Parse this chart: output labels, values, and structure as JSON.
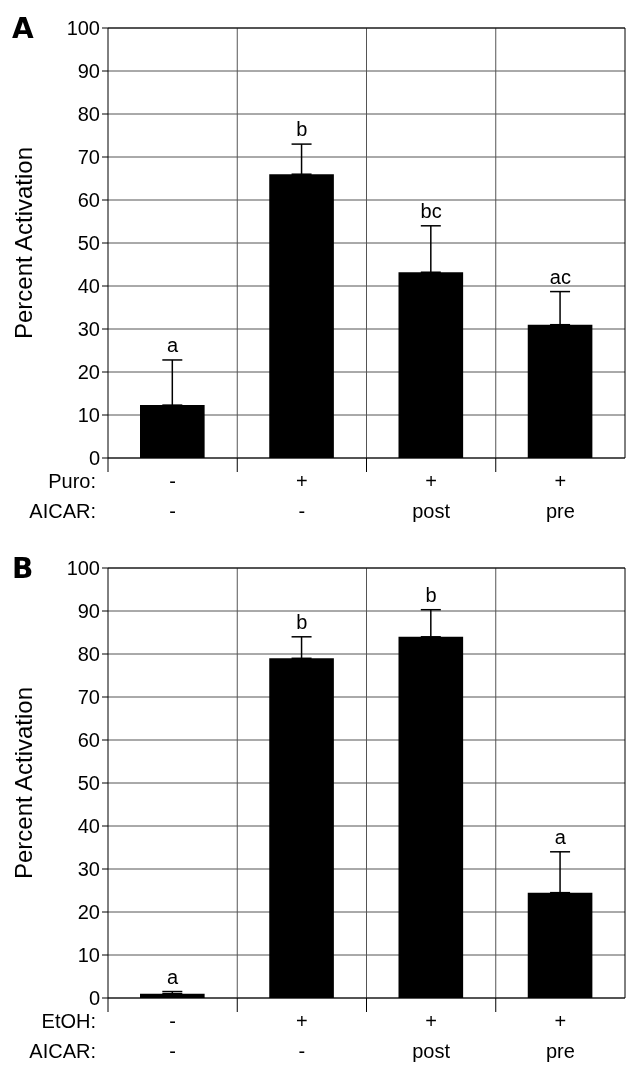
{
  "chart_data": [
    {
      "type": "bar",
      "title": "A",
      "ylabel": "Percent Activation",
      "xlabel": "Puro:\nAICAR:",
      "categories": [
        "-\n-",
        "+\n-",
        "+\npost",
        "+\npre"
      ],
      "values": [
        12.3,
        66,
        43.2,
        31
      ],
      "color": "#000000",
      "errors": [
        [
          12.3,
          22.8
        ],
        [
          66,
          73
        ],
        [
          43.2,
          54
        ],
        [
          31,
          38.7
        ]
      ],
      "ylim": [
        0,
        100
      ],
      "yticks": [
        0,
        10,
        20,
        30,
        40,
        50,
        60,
        70,
        80,
        90,
        100
      ],
      "grid": true,
      "legend": false,
      "annotations": [
        {
          "text": "a",
          "x": "-\n-",
          "y": 22.8
        },
        {
          "text": "b",
          "x": "+\n-",
          "y": 73
        },
        {
          "text": "bc",
          "x": "+\npost",
          "y": 54
        },
        {
          "text": "ac",
          "x": "+\npre",
          "y": 38.7
        }
      ]
    },
    {
      "type": "bar",
      "title": "B",
      "ylabel": "Percent Activation",
      "xlabel": "EtOH:\nAICAR:",
      "categories": [
        "-\n-",
        "+\n-",
        "+\npost",
        "+\npre"
      ],
      "values": [
        1,
        79,
        84,
        24.5
      ],
      "color": "#000000",
      "errors": [
        [
          1,
          1.5
        ],
        [
          79,
          84
        ],
        [
          84,
          90.3
        ],
        [
          24.5,
          34
        ]
      ],
      "ylim": [
        0,
        100
      ],
      "yticks": [
        0,
        10,
        20,
        30,
        40,
        50,
        60,
        70,
        80,
        90,
        100
      ],
      "grid": true,
      "legend": false,
      "annotations": [
        {
          "text": "a",
          "x": "-\n-",
          "y": 1.5
        },
        {
          "text": "b",
          "x": "+\n-",
          "y": 84
        },
        {
          "text": "b",
          "x": "+\npost",
          "y": 90.3
        },
        {
          "text": "a",
          "x": "+\npre",
          "y": 34
        }
      ]
    }
  ]
}
